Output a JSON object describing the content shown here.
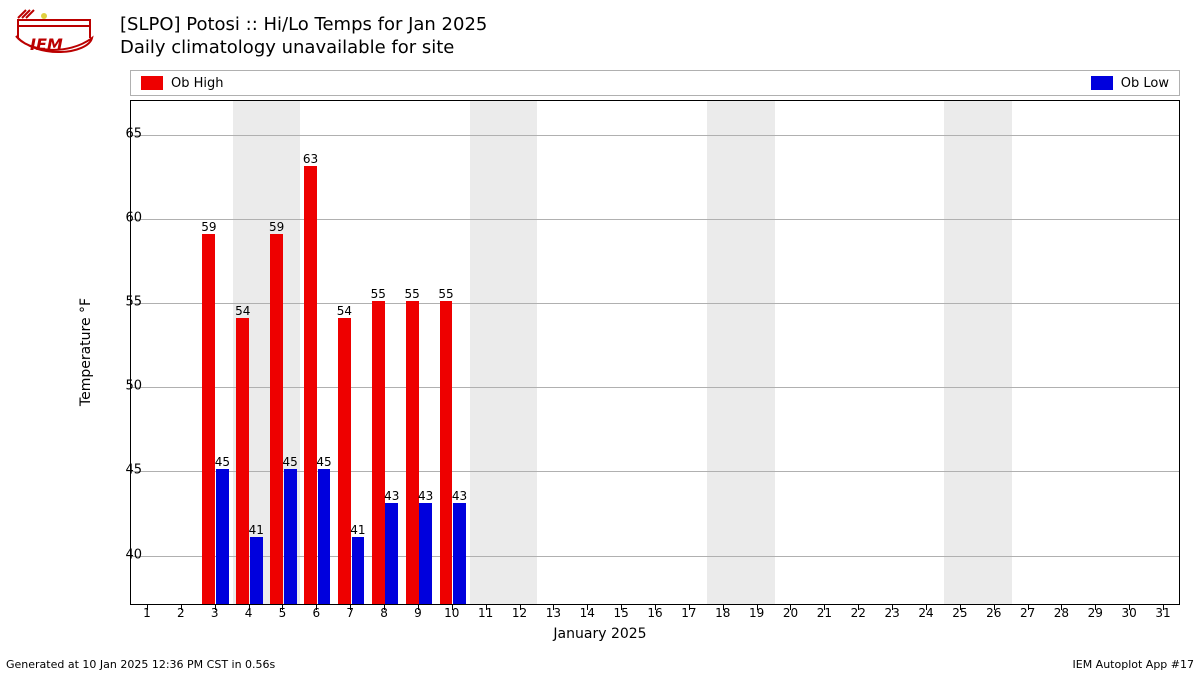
{
  "logo_text": "IEM",
  "title_line1": "[SLPO] Potosi :: Hi/Lo Temps for Jan 2025",
  "title_line2": "Daily climatology unavailable for site",
  "legend": {
    "high": {
      "label": "Ob High",
      "color": "#ee0000"
    },
    "low": {
      "label": "Ob Low",
      "color": "#0000dd"
    }
  },
  "chart": {
    "type": "bar",
    "ylabel": "Temperature °F",
    "xlabel": "January 2025",
    "ylim": [
      37,
      67
    ],
    "yticks": [
      40,
      45,
      50,
      55,
      60,
      65
    ],
    "xticks": [
      1,
      2,
      3,
      4,
      5,
      6,
      7,
      8,
      9,
      10,
      11,
      12,
      13,
      14,
      15,
      16,
      17,
      18,
      19,
      20,
      21,
      22,
      23,
      24,
      25,
      26,
      27,
      28,
      29,
      30,
      31
    ],
    "xrange": [
      0.5,
      31.5
    ],
    "weekend_bands": [
      [
        3.5,
        5.5
      ],
      [
        10.5,
        12.5
      ],
      [
        17.5,
        19.5
      ],
      [
        24.5,
        26.5
      ]
    ],
    "highs": [
      {
        "day": 3,
        "val": 59
      },
      {
        "day": 4,
        "val": 54
      },
      {
        "day": 5,
        "val": 59
      },
      {
        "day": 6,
        "val": 63
      },
      {
        "day": 7,
        "val": 54
      },
      {
        "day": 8,
        "val": 55
      },
      {
        "day": 9,
        "val": 55
      },
      {
        "day": 10,
        "val": 55
      }
    ],
    "lows": [
      {
        "day": 3,
        "val": 45
      },
      {
        "day": 4,
        "val": 41
      },
      {
        "day": 5,
        "val": 45
      },
      {
        "day": 6,
        "val": 45
      },
      {
        "day": 7,
        "val": 41
      },
      {
        "day": 8,
        "val": 43
      },
      {
        "day": 9,
        "val": 43
      },
      {
        "day": 10,
        "val": 43
      }
    ],
    "bar_width": 0.38,
    "high_offset": -0.2,
    "low_offset": 0.2,
    "grid_color": "#b0b0b0",
    "weekend_color": "#ebebeb",
    "background": "#ffffff"
  },
  "footer_left": "Generated at 10 Jan 2025 12:36 PM CST in 0.56s",
  "footer_right": "IEM Autoplot App #17"
}
